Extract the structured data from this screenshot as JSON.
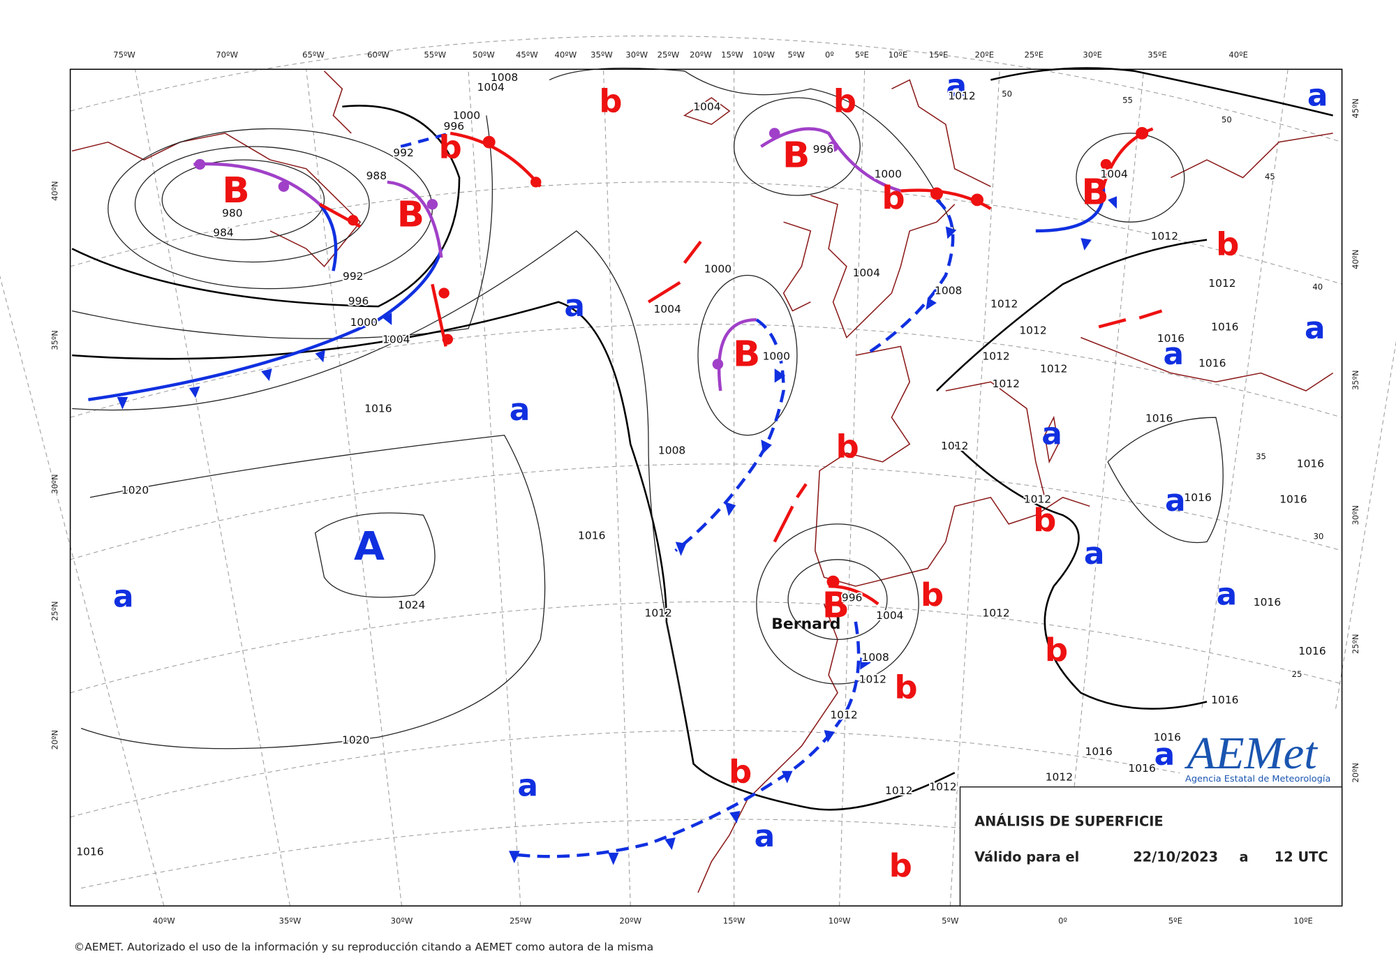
{
  "map": {
    "longitudes_top": [
      "75ºW",
      "70ºW",
      "65ºW",
      "60ºW",
      "55ºW",
      "50ºW",
      "45ºW",
      "40ºW",
      "35ºW",
      "30ºW",
      "25ºW",
      "20ºW",
      "15ºW",
      "10ºW",
      "5ºW",
      "0º",
      "5ºE",
      "10ºE",
      "15ºE",
      "20ºE",
      "25ºE",
      "30ºE",
      "35ºE",
      "40ºE"
    ],
    "longitudes_bottom": [
      "40ºW",
      "35ºW",
      "30ºW",
      "25ºW",
      "20ºW",
      "15ºW",
      "10ºW",
      "5ºW",
      "0º",
      "5ºE",
      "10ºE"
    ],
    "latitudes_left": [
      "40ºN",
      "35ºN",
      "30ºN",
      "25ºN",
      "20ºN"
    ],
    "latitudes_right": [
      "45ºN",
      "40ºN",
      "35ºN",
      "30ºN",
      "25ºN",
      "20ºN"
    ],
    "low_pressure_labels": [
      "B",
      "B",
      "B",
      "B",
      "B",
      "B",
      "b",
      "b",
      "b",
      "b",
      "b",
      "b",
      "b",
      "b",
      "b",
      "b",
      "b",
      "b"
    ],
    "high_pressure_labels": [
      "A",
      "a",
      "a",
      "a",
      "a",
      "a",
      "a",
      "a",
      "a",
      "a",
      "a",
      "a",
      "a",
      "a",
      "a"
    ],
    "isobar_labels": [
      "1008",
      "1004",
      "1000",
      "996",
      "992",
      "988",
      "980",
      "984",
      "992",
      "996",
      "1000",
      "1004",
      "1016",
      "1020",
      "1024",
      "1020",
      "1016",
      "1004",
      "1000",
      "1004",
      "1000",
      "1008",
      "1016",
      "1012",
      "996",
      "1000",
      "1004",
      "1008",
      "1012",
      "1004",
      "1012",
      "1012",
      "1012",
      "1012",
      "1012",
      "1012",
      "1012",
      "1016",
      "1016",
      "1016",
      "1016",
      "1012",
      "1012",
      "1016",
      "1016",
      "1016",
      "1016",
      "1016",
      "1016",
      "1004",
      "996",
      "1008",
      "1012",
      "1012",
      "1012",
      "1012",
      "1012",
      "1012",
      "1016",
      "1016",
      "1016",
      "50",
      "55",
      "50",
      "45",
      "40",
      "35",
      "30",
      "25"
    ],
    "storm_name": "Bernard"
  },
  "panel": {
    "title": "ANÁLISIS DE SUPERFICIE",
    "valid_label": "Válido para el",
    "date": "22/10/2023",
    "at": "a",
    "time": "12 UTC"
  },
  "logo": {
    "name": "AEMet",
    "subtitle": "Agencia Estatal de Meteorología"
  },
  "footer": "©AEMET. Autorizado el uso de la información y su reproducción citando a AEMET como autora de la misma"
}
